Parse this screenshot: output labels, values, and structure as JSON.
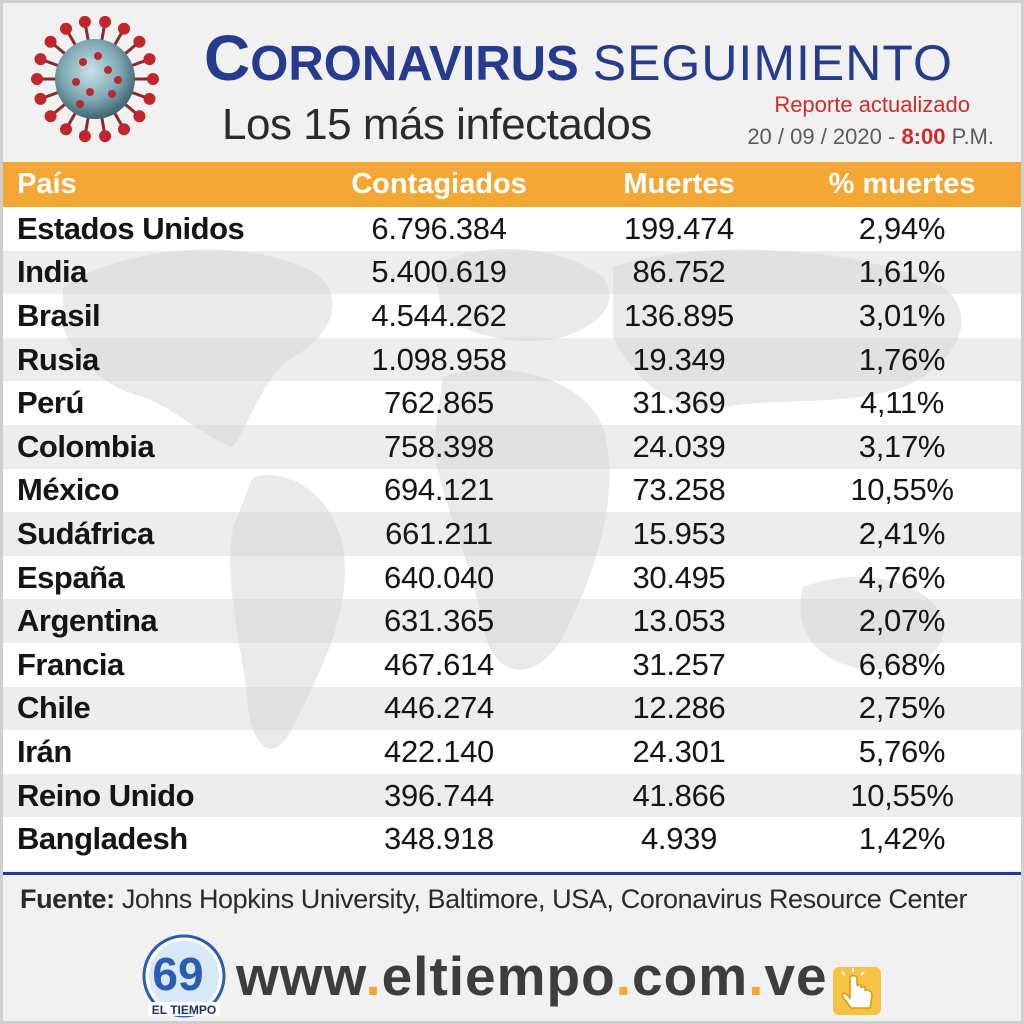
{
  "header": {
    "title_first": "C",
    "title_rest": "ORONAVIRUS",
    "title_second": "SEGUIMIENTO",
    "subtitle": "Los 15 más infectados",
    "report_label": "Reporte actualizado",
    "report_date": "20 / 09 / 2020 -",
    "report_hour": "8:00",
    "report_ampm": "P.M."
  },
  "chart_data": {
    "type": "table",
    "columns": [
      "País",
      "Contagiados",
      "Muertes",
      "% muertes"
    ],
    "rows": [
      [
        "Estados Unidos",
        "6.796.384",
        "199.474",
        "2,94%"
      ],
      [
        "India",
        "5.400.619",
        "86.752",
        "1,61%"
      ],
      [
        "Brasil",
        "4.544.262",
        "136.895",
        "3,01%"
      ],
      [
        "Rusia",
        "1.098.958",
        "19.349",
        "1,76%"
      ],
      [
        "Perú",
        "762.865",
        "31.369",
        "4,11%"
      ],
      [
        "Colombia",
        "758.398",
        "24.039",
        "3,17%"
      ],
      [
        "México",
        "694.121",
        "73.258",
        "10,55%"
      ],
      [
        "Sudáfrica",
        "661.211",
        "15.953",
        "2,41%"
      ],
      [
        "España",
        "640.040",
        "30.495",
        "4,76%"
      ],
      [
        "Argentina",
        "631.365",
        "13.053",
        "2,07%"
      ],
      [
        "Francia",
        "467.614",
        "31.257",
        "6,68%"
      ],
      [
        "Chile",
        "446.274",
        "12.286",
        "2,75%"
      ],
      [
        "Irán",
        "422.140",
        "24.301",
        "5,76%"
      ],
      [
        "Reino Unido",
        "396.744",
        "41.866",
        "10,55%"
      ],
      [
        "Bangladesh",
        "348.918",
        "4.939",
        "1,42%"
      ]
    ]
  },
  "footer": {
    "source_label": "Fuente:",
    "source_text": "Johns Hopkins University, Baltimore, USA, Coronavirus Resource Center",
    "logo_number": "69",
    "logo_text": "EL TIEMPO",
    "website_parts": [
      "www",
      ".",
      "eltiempo",
      ".",
      "com",
      ".",
      "ve"
    ]
  },
  "colors": {
    "header_band": "#f5a735",
    "title_blue": "#263a8e",
    "accent_red": "#d12a2a"
  },
  "icons": [
    "coronavirus-icon",
    "el-tiempo-logo",
    "pointing-hand-icon",
    "world-map-watermark"
  ]
}
